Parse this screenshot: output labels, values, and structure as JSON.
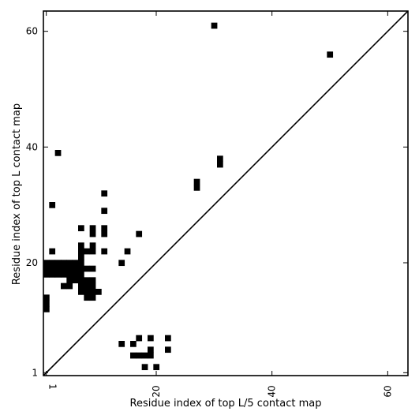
{
  "chart_data": {
    "type": "heatmap",
    "xlabel": "Residue index of top L/5 contact map",
    "ylabel": "Residue index of top L contact map",
    "xlim": [
      0.5,
      63.5
    ],
    "ylim": [
      0.5,
      63.5
    ],
    "x_ticks": [
      1,
      20,
      40,
      60
    ],
    "y_ticks": [
      1,
      20,
      40,
      60
    ],
    "x_tick_labels": [
      "1",
      "20",
      "40",
      "60"
    ],
    "y_tick_labels": [
      "1",
      "20",
      "40",
      "60"
    ],
    "diagonal": true,
    "cell_color": "#000000",
    "upper_contacts": [
      [
        1,
        12
      ],
      [
        1,
        13
      ],
      [
        1,
        14
      ],
      [
        1,
        18
      ],
      [
        1,
        19
      ],
      [
        1,
        20
      ],
      [
        2,
        18
      ],
      [
        2,
        19
      ],
      [
        2,
        20
      ],
      [
        3,
        18
      ],
      [
        3,
        19
      ],
      [
        3,
        20
      ],
      [
        4,
        18
      ],
      [
        4,
        19
      ],
      [
        4,
        20
      ],
      [
        5,
        18
      ],
      [
        5,
        19
      ],
      [
        5,
        20
      ],
      [
        6,
        18
      ],
      [
        6,
        19
      ],
      [
        6,
        20
      ],
      [
        2,
        22
      ],
      [
        2,
        30
      ],
      [
        3,
        39
      ],
      [
        4,
        16
      ],
      [
        5,
        16
      ],
      [
        5,
        17
      ],
      [
        5,
        18
      ],
      [
        6,
        17
      ],
      [
        6,
        18
      ],
      [
        6,
        19
      ],
      [
        7,
        15
      ],
      [
        7,
        16
      ],
      [
        7,
        17
      ],
      [
        7,
        18
      ],
      [
        7,
        19
      ],
      [
        7,
        20
      ],
      [
        7,
        21
      ],
      [
        7,
        22
      ],
      [
        7,
        23
      ],
      [
        7,
        26
      ],
      [
        8,
        14
      ],
      [
        8,
        15
      ],
      [
        8,
        16
      ],
      [
        8,
        17
      ],
      [
        8,
        19
      ],
      [
        8,
        22
      ],
      [
        9,
        14
      ],
      [
        9,
        15
      ],
      [
        9,
        16
      ],
      [
        9,
        17
      ],
      [
        9,
        19
      ],
      [
        9,
        22
      ],
      [
        9,
        23
      ],
      [
        9,
        25
      ],
      [
        9,
        26
      ],
      [
        10,
        15
      ],
      [
        11,
        22
      ],
      [
        11,
        25
      ],
      [
        11,
        26
      ],
      [
        11,
        29
      ],
      [
        11,
        32
      ],
      [
        14,
        20
      ],
      [
        15,
        22
      ],
      [
        17,
        25
      ],
      [
        27,
        33
      ],
      [
        27,
        34
      ],
      [
        31,
        37
      ],
      [
        31,
        38
      ],
      [
        30,
        61
      ],
      [
        50,
        56
      ]
    ],
    "lower_contacts": [
      [
        14,
        6
      ],
      [
        16,
        6
      ],
      [
        16,
        4
      ],
      [
        17,
        4
      ],
      [
        17,
        7
      ],
      [
        18,
        4
      ],
      [
        18,
        2
      ],
      [
        19,
        4
      ],
      [
        19,
        7
      ],
      [
        19,
        5
      ],
      [
        20,
        2
      ],
      [
        22,
        7
      ],
      [
        22,
        5
      ]
    ]
  }
}
